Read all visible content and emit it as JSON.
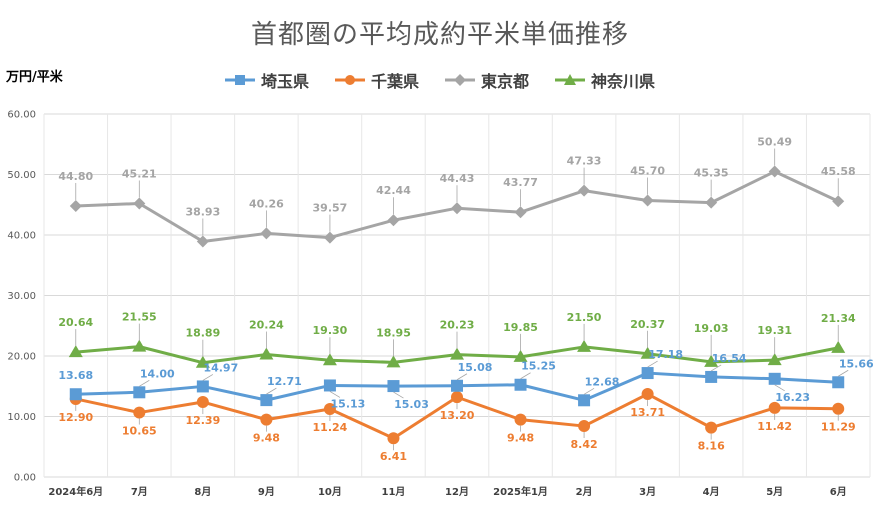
{
  "chart_data": {
    "type": "line",
    "title": "首都圏の平均成約平米単価推移",
    "ylabel": "万円/平米",
    "xlabel": "",
    "ylim": [
      0,
      60
    ],
    "yticks": [
      "0.00",
      "10.00",
      "20.00",
      "30.00",
      "40.00",
      "50.00",
      "60.00"
    ],
    "ytick_values": [
      0,
      10,
      20,
      30,
      40,
      50,
      60
    ],
    "grid": true,
    "legend_position": "top-center",
    "categories": [
      "2024年6月",
      "7月",
      "8月",
      "9月",
      "10月",
      "11月",
      "12月",
      "2025年1月",
      "2月",
      "3月",
      "4月",
      "5月",
      "6月"
    ],
    "series": [
      {
        "name": "埼玉県",
        "color": "#5B9BD5",
        "marker": "square",
        "values": [
          13.68,
          14.0,
          14.97,
          12.71,
          15.13,
          15.03,
          15.08,
          15.25,
          12.68,
          17.18,
          16.54,
          16.23,
          15.66
        ],
        "labels": [
          "13.68",
          "14.00",
          "14.97",
          "12.71",
          "15.13",
          "15.03",
          "15.08",
          "15.25",
          "12.68",
          "17.18",
          "16.54",
          "16.23",
          "15.66"
        ]
      },
      {
        "name": "千葉県",
        "color": "#ED7D31",
        "marker": "circle",
        "values": [
          12.9,
          10.65,
          12.39,
          9.48,
          11.24,
          6.41,
          13.2,
          9.48,
          8.42,
          13.71,
          8.16,
          11.42,
          11.29
        ],
        "labels": [
          "12.90",
          "10.65",
          "12.39",
          "9.48",
          "11.24",
          "6.41",
          "13.20",
          "9.48",
          "8.42",
          "13.71",
          "8.16",
          "11.42",
          "11.29"
        ]
      },
      {
        "name": "東京都",
        "color": "#A5A5A5",
        "marker": "diamond",
        "values": [
          44.8,
          45.21,
          38.93,
          40.26,
          39.57,
          42.44,
          44.43,
          43.77,
          47.33,
          45.7,
          45.35,
          50.49,
          45.58
        ],
        "labels": [
          "44.80",
          "45.21",
          "38.93",
          "40.26",
          "39.57",
          "42.44",
          "44.43",
          "43.77",
          "47.33",
          "45.70",
          "45.35",
          "50.49",
          "45.58"
        ]
      },
      {
        "name": "神奈川県",
        "color": "#70AD47",
        "marker": "triangle",
        "values": [
          20.64,
          21.55,
          18.89,
          20.24,
          19.3,
          18.95,
          20.23,
          19.85,
          21.5,
          20.37,
          19.03,
          19.31,
          21.34
        ],
        "labels": [
          "20.64",
          "21.55",
          "18.89",
          "20.24",
          "19.30",
          "18.95",
          "20.23",
          "19.85",
          "21.50",
          "20.37",
          "19.03",
          "19.31",
          "21.34"
        ]
      }
    ]
  }
}
